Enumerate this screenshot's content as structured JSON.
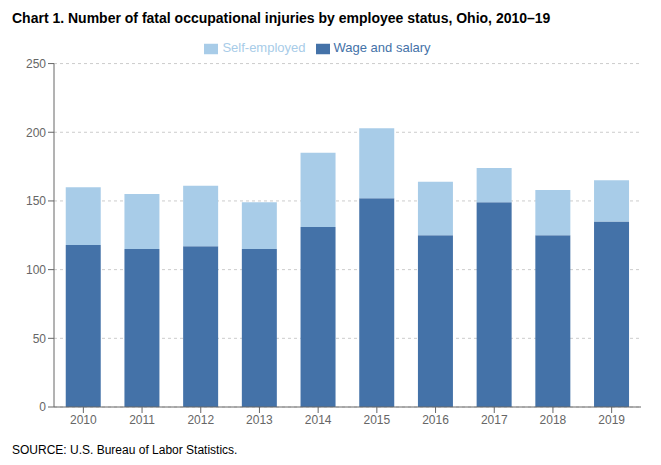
{
  "chart_data": {
    "type": "bar",
    "title": "Chart 1. Number of fatal occupational injuries by employee status, Ohio, 2010–19",
    "categories": [
      "2010",
      "2011",
      "2012",
      "2013",
      "2014",
      "2015",
      "2016",
      "2017",
      "2018",
      "2019"
    ],
    "series": [
      {
        "name": "Wage and salary",
        "color": "#4472a8",
        "values": [
          118,
          115,
          117,
          115,
          131,
          152,
          125,
          149,
          125,
          135
        ]
      },
      {
        "name": "Self-employed",
        "color": "#a8cce8",
        "values": [
          42,
          40,
          44,
          34,
          54,
          51,
          39,
          25,
          33,
          30
        ]
      }
    ],
    "ylim": [
      0,
      250
    ],
    "yticks": [
      0,
      50,
      100,
      150,
      200,
      250
    ],
    "grid": true,
    "stacked": true,
    "legend": "top",
    "annotations": [
      "SOURCE: U.S. Bureau of Labor Statistics."
    ]
  }
}
